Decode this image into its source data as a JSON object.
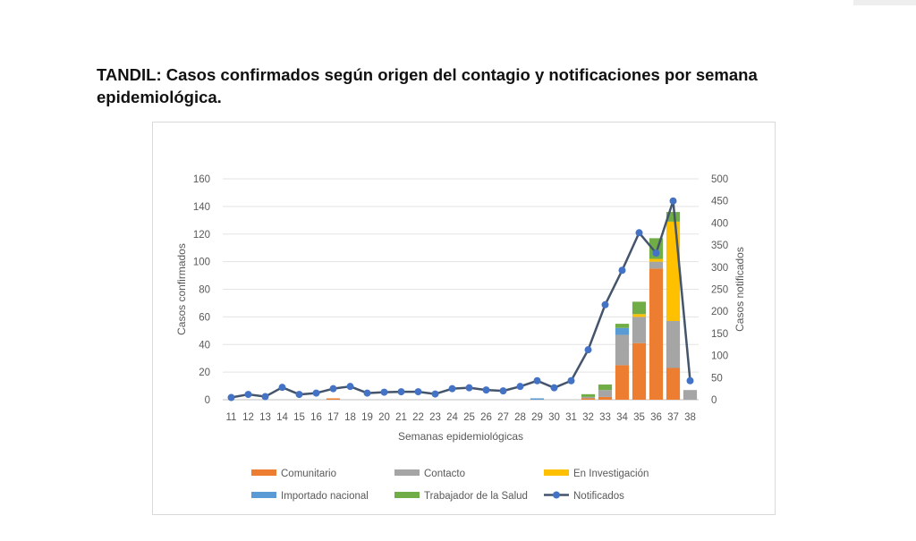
{
  "title": "TANDIL: Casos confirmados según origen del contagio y notificaciones por semana epidemiológica.",
  "chart_data": {
    "type": "bar",
    "stacked": true,
    "categories": [
      "11",
      "12",
      "13",
      "14",
      "15",
      "16",
      "17",
      "18",
      "19",
      "20",
      "21",
      "22",
      "23",
      "24",
      "25",
      "26",
      "27",
      "28",
      "29",
      "30",
      "31",
      "32",
      "33",
      "34",
      "35",
      "36",
      "37",
      "38"
    ],
    "xlabel": "Semanas epidemiológicas",
    "ylabel": "Casos confirmados",
    "y2label": "Casos notificados",
    "ylim": [
      0,
      160
    ],
    "yticks": [
      0,
      20,
      40,
      60,
      80,
      100,
      120,
      140,
      160
    ],
    "y2lim": [
      0,
      500
    ],
    "y2ticks": [
      0,
      50,
      100,
      150,
      200,
      250,
      300,
      350,
      400,
      450,
      500
    ],
    "grid": true,
    "legend_position": "bottom",
    "series": [
      {
        "name": "Comunitario",
        "color": "#ed7d31",
        "values": [
          0,
          0,
          0,
          0,
          0,
          0,
          1,
          0,
          0,
          0,
          0,
          0,
          0,
          0,
          0,
          0,
          0,
          0,
          0,
          0,
          0,
          1,
          2,
          25,
          41,
          95,
          23,
          0
        ]
      },
      {
        "name": "Contacto",
        "color": "#a5a5a5",
        "values": [
          0,
          0,
          0,
          0,
          0,
          0,
          0,
          0,
          0,
          0,
          0,
          0,
          0,
          0,
          0,
          0,
          0,
          0,
          0,
          0,
          0,
          1,
          5,
          22,
          19,
          5,
          34,
          7
        ]
      },
      {
        "name": "En Investigación",
        "color": "#ffc000",
        "values": [
          0,
          0,
          0,
          0,
          0,
          0,
          0,
          0,
          0,
          0,
          0,
          0,
          0,
          0,
          0,
          0,
          0,
          0,
          0,
          0,
          0,
          0,
          0,
          0,
          2,
          2,
          72,
          0
        ]
      },
      {
        "name": "Importado nacional",
        "color": "#5b9bd5",
        "values": [
          0,
          0,
          0,
          0,
          0,
          0,
          0,
          0,
          0,
          0,
          0,
          0,
          0,
          0,
          0,
          0,
          0,
          0,
          1,
          0,
          0,
          0,
          0,
          5,
          0,
          0,
          0,
          0
        ]
      },
      {
        "name": "Trabajador de la Salud",
        "color": "#70ad47",
        "values": [
          0,
          0,
          0,
          0,
          0,
          0,
          0,
          0,
          0,
          0,
          0,
          0,
          0,
          0,
          0,
          0,
          0,
          0,
          0,
          0,
          0,
          2,
          4,
          3,
          9,
          15,
          7,
          0
        ]
      }
    ],
    "line_series": {
      "name": "Notificados",
      "color": "#44546a",
      "marker_color": "#4472c4",
      "axis": "secondary",
      "values": [
        5,
        12,
        7,
        28,
        12,
        15,
        25,
        30,
        15,
        17,
        18,
        18,
        13,
        25,
        27,
        22,
        20,
        30,
        43,
        27,
        43,
        113,
        215,
        293,
        378,
        332,
        450,
        43
      ]
    }
  }
}
